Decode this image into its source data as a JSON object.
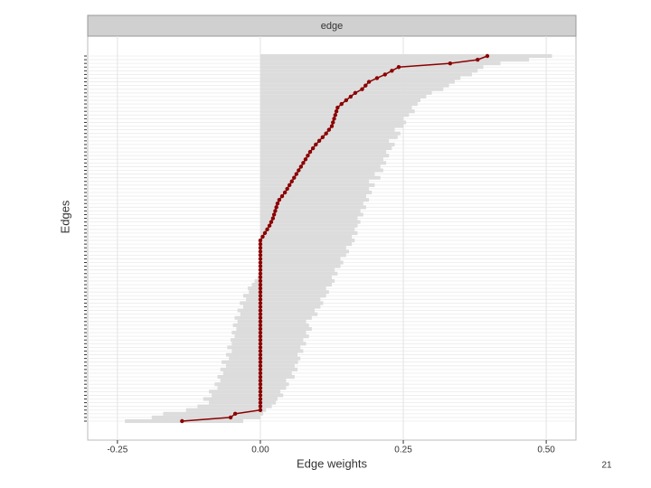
{
  "chart_data": {
    "type": "interval",
    "strip_label": "edge",
    "xlabel": "Edge weights",
    "ylabel": "Edges",
    "xlim": [
      -0.302,
      0.552
    ],
    "xticks": [
      {
        "value": -0.25,
        "label": "-0.25"
      },
      {
        "value": 0,
        "label": "0.00"
      },
      {
        "value": 0.25,
        "label": "0.25"
      },
      {
        "value": 0.5,
        "label": "0.50"
      }
    ],
    "grid": true,
    "color": "#8b0000",
    "band_color": "#dcdcdc",
    "categories": [
      null,
      null,
      null,
      null,
      null,
      null,
      null,
      null,
      null,
      null,
      null,
      null,
      null,
      null,
      null,
      null,
      null,
      null,
      null,
      null,
      null,
      null,
      null,
      null,
      null,
      null,
      null,
      null,
      null,
      null,
      null,
      null,
      null,
      null,
      null,
      null,
      null,
      null,
      null,
      null,
      null,
      null,
      null,
      null,
      null,
      null,
      null,
      null,
      null,
      null,
      null,
      null,
      null,
      null,
      null,
      null,
      null,
      null,
      null,
      null,
      null,
      null,
      null,
      null,
      null,
      null,
      null,
      null,
      null,
      null,
      null,
      null,
      null,
      null,
      null,
      null,
      null,
      null,
      null,
      null,
      null,
      null,
      null,
      null,
      null,
      null,
      null,
      null,
      null,
      null,
      null,
      null,
      null,
      null,
      null,
      null,
      null,
      null,
      null,
      null
    ],
    "values": [
      -0.137,
      -0.052,
      -0.044,
      0,
      0,
      0,
      0,
      0,
      0,
      0,
      0,
      0,
      0,
      0,
      0,
      0,
      0,
      0,
      0,
      0,
      0,
      0,
      0,
      0,
      0,
      0,
      0,
      0,
      0,
      0,
      0,
      0,
      0,
      0,
      0,
      0,
      0,
      0,
      0,
      0,
      0,
      0,
      0,
      0,
      0,
      0,
      0,
      0,
      0,
      0,
      0.004,
      0.008,
      0.012,
      0.016,
      0.019,
      0.022,
      0.024,
      0.026,
      0.028,
      0.03,
      0.033,
      0.038,
      0.043,
      0.047,
      0.051,
      0.055,
      0.059,
      0.063,
      0.067,
      0.071,
      0.075,
      0.079,
      0.083,
      0.087,
      0.092,
      0.097,
      0.103,
      0.109,
      0.115,
      0.12,
      0.125,
      0.127,
      0.129,
      0.131,
      0.133,
      0.135,
      0.142,
      0.15,
      0.158,
      0.166,
      0.178,
      0.184,
      0.19,
      0.204,
      0.218,
      0.23,
      0.242,
      0.332,
      0.38,
      0.397
    ],
    "ci_lower": [
      -0.237,
      -0.19,
      -0.17,
      -0.13,
      -0.11,
      -0.09,
      -0.1,
      -0.085,
      -0.09,
      -0.075,
      -0.08,
      -0.07,
      -0.075,
      -0.065,
      -0.07,
      -0.06,
      -0.068,
      -0.055,
      -0.06,
      -0.05,
      -0.058,
      -0.05,
      -0.052,
      -0.045,
      -0.05,
      -0.042,
      -0.048,
      -0.04,
      -0.045,
      -0.035,
      -0.04,
      -0.03,
      -0.036,
      -0.025,
      -0.03,
      -0.02,
      -0.022,
      -0.015,
      -0.01,
      -0.005,
      0,
      0,
      0,
      0,
      0,
      0,
      0,
      0,
      0,
      0,
      0,
      0,
      0,
      0,
      0,
      0,
      0,
      0,
      0,
      0,
      0,
      0,
      0,
      0,
      0,
      0,
      0,
      0,
      0,
      0,
      0,
      0,
      0,
      0,
      0,
      0,
      0,
      0,
      0,
      0,
      0,
      0,
      0,
      0,
      0,
      0,
      0,
      0,
      0,
      0,
      0,
      0,
      0,
      0,
      0,
      0,
      0,
      0,
      0,
      0
    ],
    "ci_upper": [
      -0.03,
      0.0,
      0.005,
      0.01,
      0.02,
      0.027,
      0.03,
      0.04,
      0.035,
      0.045,
      0.05,
      0.045,
      0.06,
      0.055,
      0.065,
      0.06,
      0.066,
      0.07,
      0.065,
      0.075,
      0.07,
      0.08,
      0.075,
      0.085,
      0.08,
      0.09,
      0.085,
      0.08,
      0.09,
      0.1,
      0.095,
      0.105,
      0.11,
      0.105,
      0.115,
      0.12,
      0.115,
      0.125,
      0.13,
      0.125,
      0.135,
      0.13,
      0.14,
      0.145,
      0.14,
      0.15,
      0.155,
      0.15,
      0.16,
      0.165,
      0.16,
      0.17,
      0.165,
      0.17,
      0.175,
      0.17,
      0.18,
      0.175,
      0.185,
      0.18,
      0.19,
      0.185,
      0.195,
      0.19,
      0.2,
      0.19,
      0.21,
      0.2,
      0.215,
      0.21,
      0.22,
      0.215,
      0.225,
      0.22,
      0.23,
      0.235,
      0.225,
      0.24,
      0.245,
      0.235,
      0.25,
      0.255,
      0.25,
      0.26,
      0.27,
      0.265,
      0.275,
      0.28,
      0.29,
      0.3,
      0.32,
      0.33,
      0.34,
      0.35,
      0.37,
      0.38,
      0.39,
      0.42,
      0.47,
      0.51
    ]
  },
  "slide_number": "21"
}
